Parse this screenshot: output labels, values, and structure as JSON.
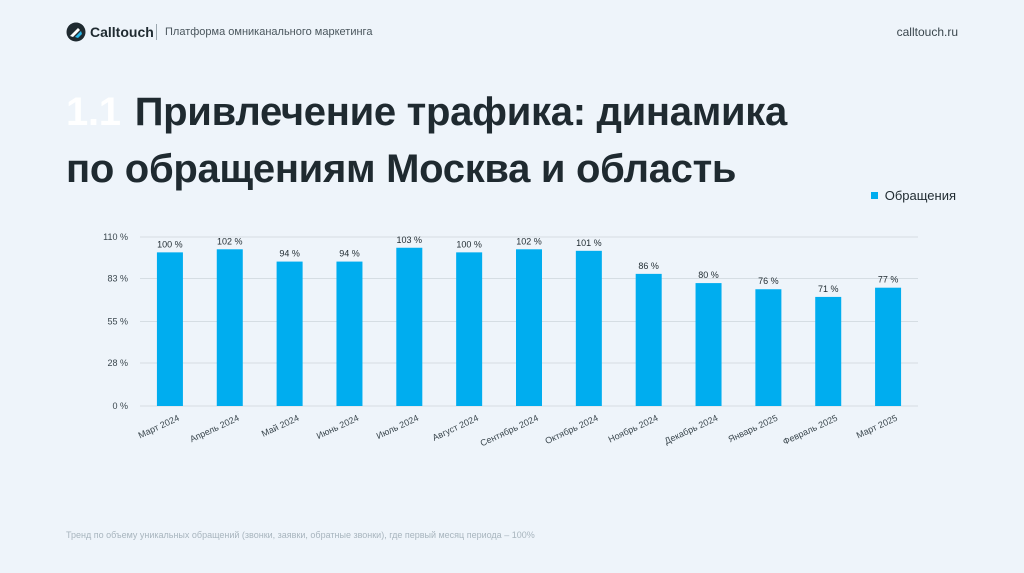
{
  "header": {
    "brand": "Calltouch",
    "tagline": "Платформа омниканального маркетинга",
    "site": "calltouch.ru"
  },
  "slide": {
    "number": "1.1",
    "title_line1": "Привлечение трафика: динамика",
    "title_line2": "по обращениям Москва и область"
  },
  "legend": {
    "label": "Обращения",
    "color": "#00adef"
  },
  "footnote": "Тренд по объему уникальных обращений (звонки, заявки, обратные звонки), где первый месяц периода – 100%",
  "chart_data": {
    "type": "bar",
    "categories": [
      "Март 2024",
      "Апрель 2024",
      "Май 2024",
      "Июнь 2024",
      "Июль 2024",
      "Август 2024",
      "Сентябрь 2024",
      "Октябрь 2024",
      "Ноябрь 2024",
      "Декабрь 2024",
      "Январь 2025",
      "Февраль 2025",
      "Март 2025"
    ],
    "series": [
      {
        "name": "Обращения",
        "values": [
          100,
          102,
          94,
          94,
          103,
          100,
          102,
          101,
          86,
          80,
          76,
          71,
          77
        ],
        "labels": [
          "100 %",
          "102 %",
          "94 %",
          "94 %",
          "103 %",
          "100 %",
          "102 %",
          "101 %",
          "86 %",
          "80 %",
          "76 %",
          "71 %",
          "77 %"
        ]
      }
    ],
    "yticks": [
      0,
      28,
      55,
      83,
      110
    ],
    "ytick_labels": [
      "0 %",
      "28 %",
      "55 %",
      "83 %",
      "110 %"
    ],
    "ylim": [
      0,
      110
    ],
    "grid": true,
    "legend_position": "top-right"
  }
}
